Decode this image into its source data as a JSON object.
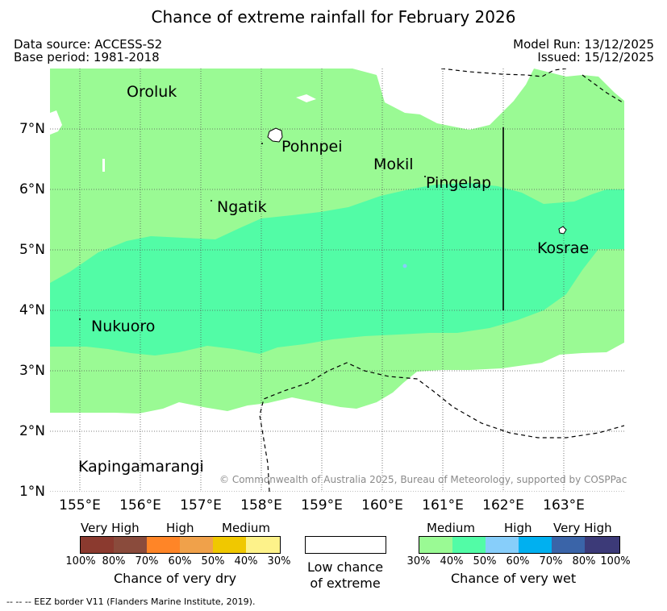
{
  "title": "Chance of extreme rainfall for February 2026",
  "meta": {
    "data_source": "Data source: ACCESS-S2",
    "base_period": "Base period: 1981-2018",
    "model_run": "Model Run: 13/12/2025",
    "issued": "Issued: 15/12/2025"
  },
  "map": {
    "lat_labels": [
      "7°N",
      "6°N",
      "5°N",
      "4°N",
      "3°N",
      "2°N",
      "1°N"
    ],
    "lon_labels": [
      "155°E",
      "156°E",
      "157°E",
      "158°E",
      "159°E",
      "160°E",
      "161°E",
      "162°E",
      "163°E"
    ],
    "places": [
      "Oroluk",
      "Pohnpei",
      "Mokil",
      "Pingelap",
      "Ngatik",
      "Kosrae",
      "Nukuoro",
      "Kapingamarangi"
    ],
    "copyright": "© Commonwealth of Australia 2025, Bureau of Meteorology, supported by COSPPac",
    "colors": {
      "wet_medium_30": "#9afa94",
      "wet_medium_40": "#52fca6",
      "wet_high_50": "#87cefa",
      "wet_high_60": "#00b0f0",
      "wet_vhigh_70": "#3a64a8",
      "wet_vhigh_80": "#3c3a78",
      "land_outline": "#000000",
      "grid": "#555555"
    }
  },
  "legend": {
    "dry": {
      "groups": [
        "Very High",
        "High",
        "Medium"
      ],
      "ticks": [
        "100%",
        "80%",
        "70%",
        "60%",
        "50%",
        "40%",
        "30%"
      ],
      "caption": "Chance of very dry",
      "colors": [
        "#8b3a2f",
        "#8a4b3c",
        "#ff8527",
        "#f0a14a",
        "#f0c800",
        "#fdf28a"
      ]
    },
    "low": {
      "caption_line1": "Low chance",
      "caption_line2": "of extreme"
    },
    "wet": {
      "groups": [
        "Medium",
        "High",
        "Very High"
      ],
      "ticks": [
        "30%",
        "40%",
        "50%",
        "60%",
        "70%",
        "80%",
        "100%"
      ],
      "caption": "Chance of very wet",
      "colors": [
        "#9afa94",
        "#52fca6",
        "#87cefa",
        "#00b0f0",
        "#3a64a8",
        "#3c3a78"
      ]
    }
  },
  "footer": "--  --  -- EEZ border V11 (Flanders Marine Institute, 2019)."
}
